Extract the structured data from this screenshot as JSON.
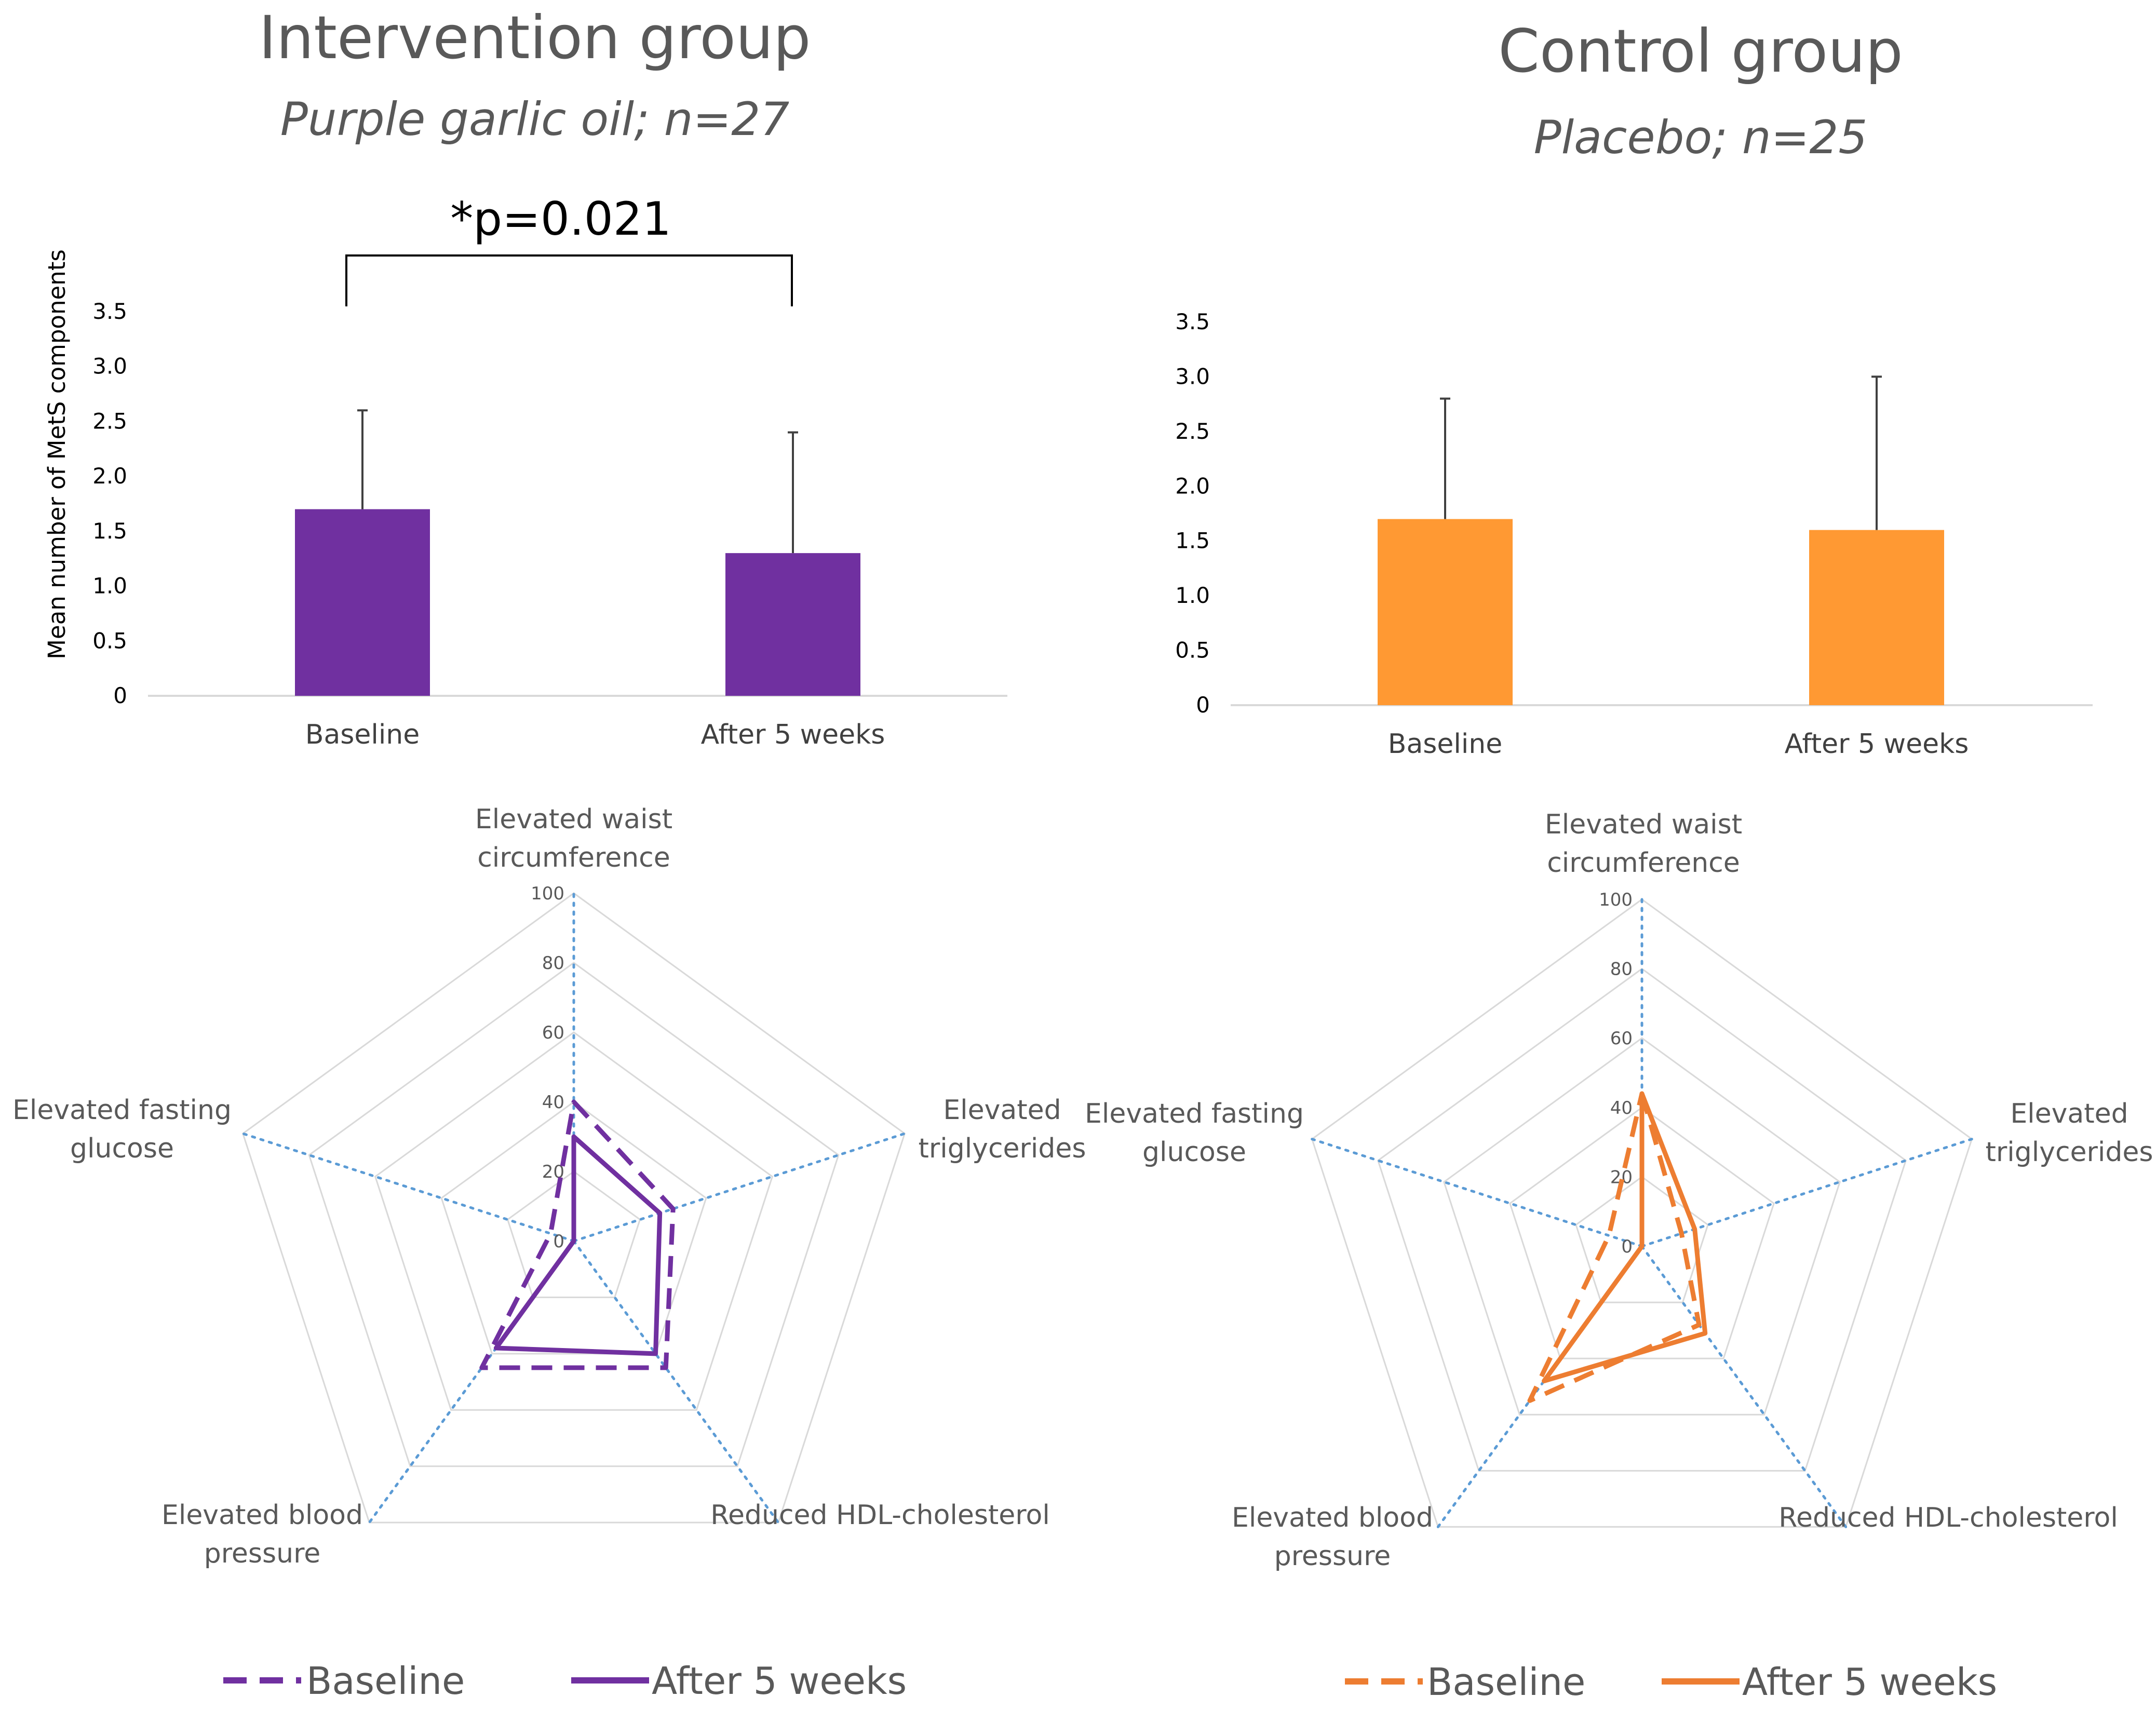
{
  "colors": {
    "intervention": "#7030a0",
    "control_bar": "#ff9933",
    "control_line": "#ed7d31",
    "grid": "#d9d9d9",
    "spoke": "#5b9bd5",
    "axis_text": "#595959"
  },
  "panels": {
    "intervention": {
      "title": "Intervention group",
      "subtitle": "Purple garlic oil; n=27",
      "significance": "*p=0.021"
    },
    "control": {
      "title": "Control group",
      "subtitle": "Placebo; n=25"
    }
  },
  "chart_data": [
    {
      "id": "intervention_bar",
      "type": "bar",
      "ylabel": "Mean number of MetS components",
      "ylim": [
        0,
        3.5
      ],
      "yticks": [
        "0",
        "0.5",
        "1.0",
        "1.5",
        "2.0",
        "2.5",
        "3.0",
        "3.5"
      ],
      "categories": [
        "Baseline",
        "After 5 weeks"
      ],
      "values": [
        1.7,
        1.3
      ],
      "error_upper": [
        2.6,
        2.4
      ],
      "annotation": "*p=0.021"
    },
    {
      "id": "control_bar",
      "type": "bar",
      "ylabel": "",
      "ylim": [
        0,
        3.5
      ],
      "yticks": [
        "0",
        "0.5",
        "1.0",
        "1.5",
        "2.0",
        "2.5",
        "3.0",
        "3.5"
      ],
      "categories": [
        "Baseline",
        "After 5 weeks"
      ],
      "values": [
        1.7,
        1.6
      ],
      "error_upper": [
        2.8,
        3.0
      ]
    },
    {
      "id": "intervention_radar",
      "type": "radar",
      "axes": [
        "Elevated waist circumference",
        "Elevated triglycerides",
        "Reduced HDL-cholesterol",
        "Elevated blood pressure",
        "Elevated fasting glucose"
      ],
      "rlim": [
        0,
        100
      ],
      "rticks": [
        "0",
        "20",
        "40",
        "60",
        "80",
        "100"
      ],
      "series": [
        {
          "name": "Baseline",
          "style": "dashed",
          "values": [
            40,
            30,
            45,
            45,
            7
          ]
        },
        {
          "name": "After 5 weeks",
          "style": "solid",
          "values": [
            30,
            26,
            40,
            38,
            0
          ]
        }
      ]
    },
    {
      "id": "control_radar",
      "type": "radar",
      "axes": [
        "Elevated waist circumference",
        "Elevated triglycerides",
        "Reduced HDL-cholesterol",
        "Elevated blood pressure",
        "Elevated fasting glucose"
      ],
      "rlim": [
        0,
        100
      ],
      "rticks": [
        "0",
        "20",
        "40",
        "60",
        "80",
        "100"
      ],
      "series": [
        {
          "name": "Baseline",
          "style": "dashed",
          "values": [
            44,
            12,
            28,
            55,
            10
          ]
        },
        {
          "name": "After 5 weeks",
          "style": "solid",
          "values": [
            44,
            16,
            31,
            48,
            0
          ]
        }
      ]
    }
  ],
  "legends": {
    "intervention": [
      "Baseline",
      "After 5 weeks"
    ],
    "control": [
      "Baseline",
      "After 5 weeks"
    ]
  }
}
